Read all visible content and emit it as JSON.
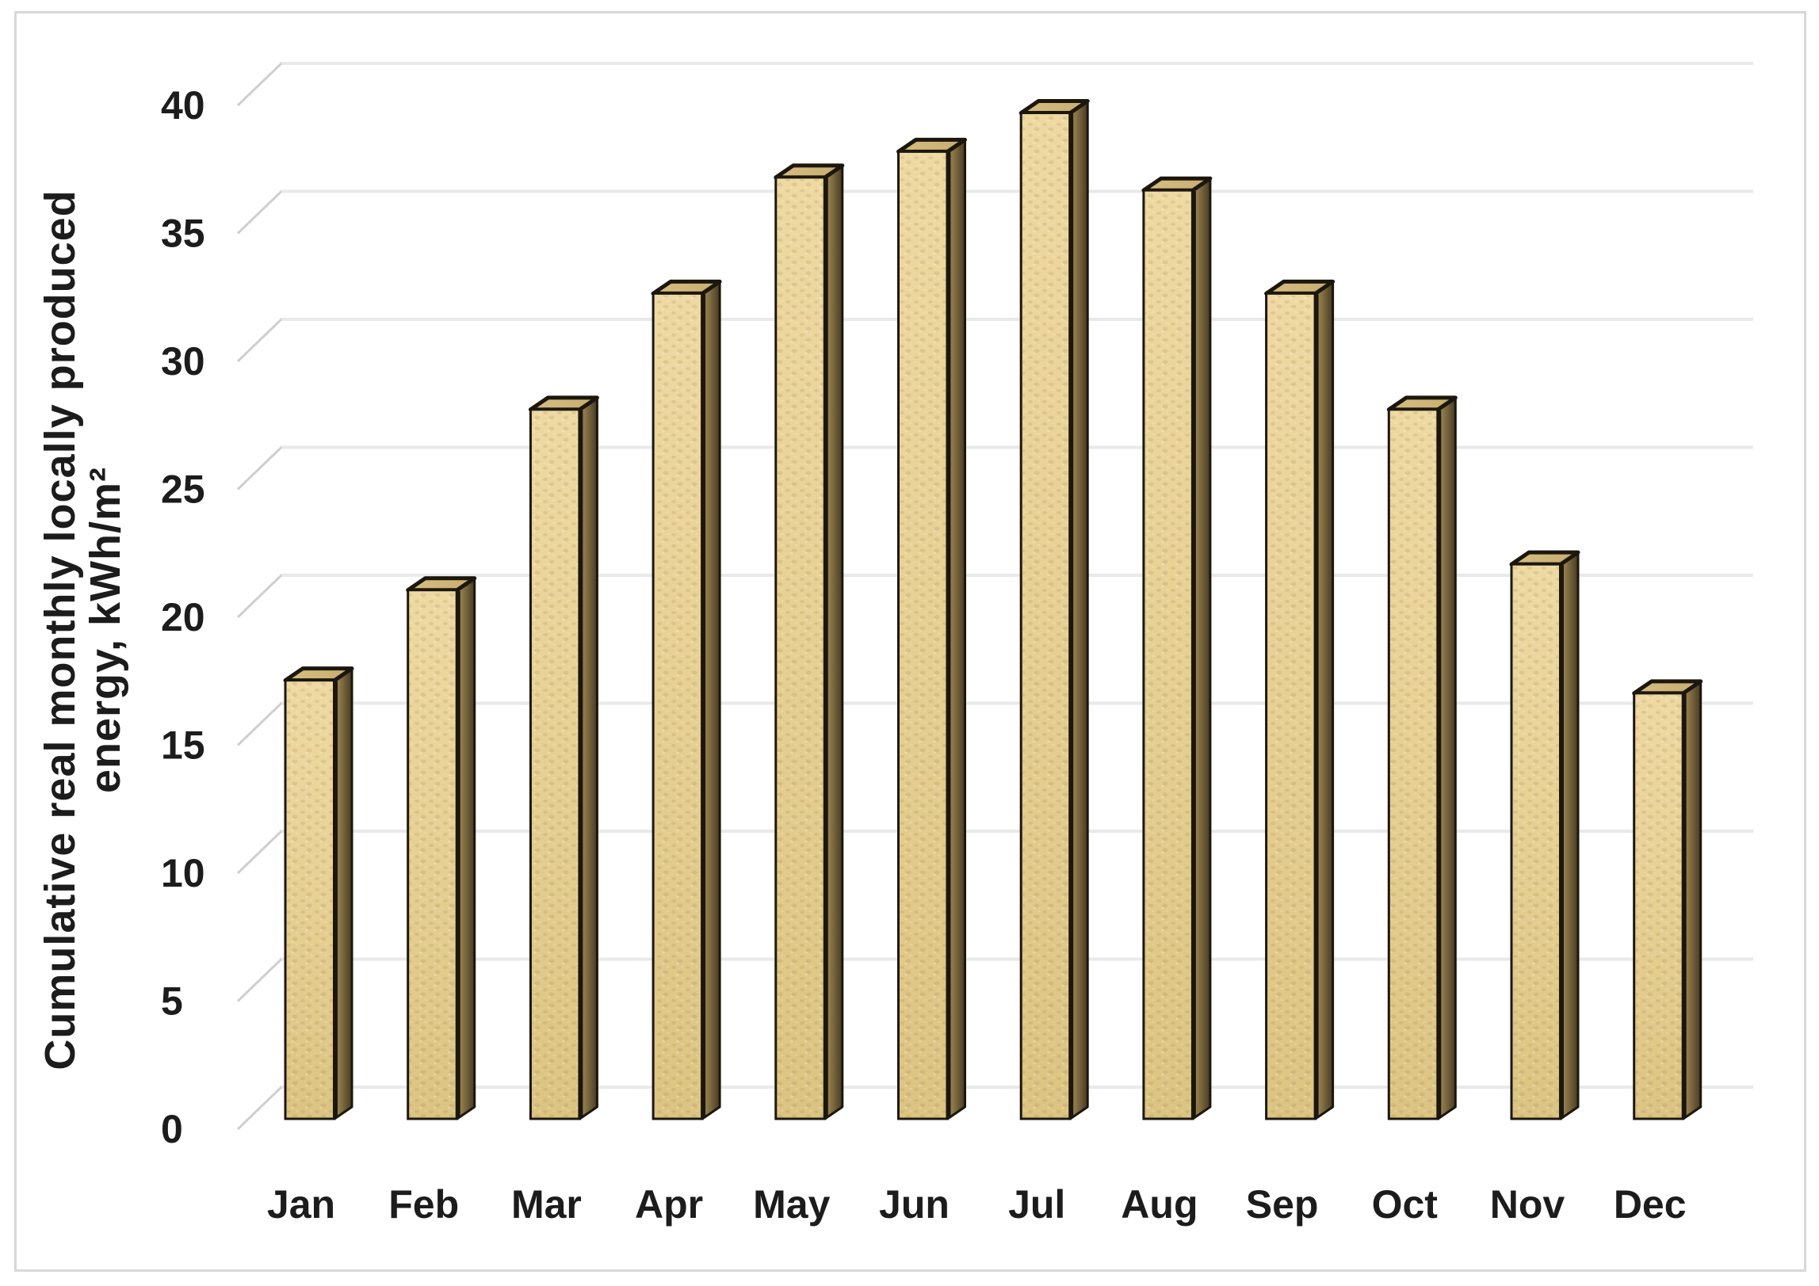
{
  "chart_data": {
    "type": "bar",
    "bar_style": "3d-box",
    "title": "",
    "categories": [
      "Jan",
      "Feb",
      "Mar",
      "Apr",
      "May",
      "Jun",
      "Jul",
      "Aug",
      "Sep",
      "Oct",
      "Nov",
      "Dec"
    ],
    "values": [
      17,
      20.5,
      27.5,
      32,
      36.5,
      37.5,
      39,
      36,
      32,
      27.5,
      21.5,
      16.5
    ],
    "series_name": "Cumulative real monthly locally produced energy",
    "xlabel": "",
    "ylabel": "Cumulative real monthly locally produced energy, kWh/m²",
    "ylabel_line1": "Cumulative real monthly locally produced",
    "ylabel_line2": "energy, kWh/m²",
    "yticks": [
      0,
      5,
      10,
      15,
      20,
      25,
      30,
      35,
      40
    ],
    "ylim": [
      0,
      40
    ],
    "grid": true,
    "legend": false,
    "legend_position": "none",
    "colors": {
      "bar_front": "#e7d195",
      "bar_front_light": "#eed9a3",
      "bar_front_dark": "#dcc483",
      "bar_side": "#a68f58",
      "bar_side_mid": "#7d6a40",
      "bar_side_dark": "#473b24",
      "bar_top": "#d6bd80",
      "bar_top_dark": "#c7ad70",
      "bar_outline": "#1c170d",
      "gridline": "#e9e9e9",
      "tick_connector": "#cfcfcf",
      "text": "#1c1c1c",
      "frame_border": "#d8d8d8",
      "background": "#ffffff"
    }
  }
}
